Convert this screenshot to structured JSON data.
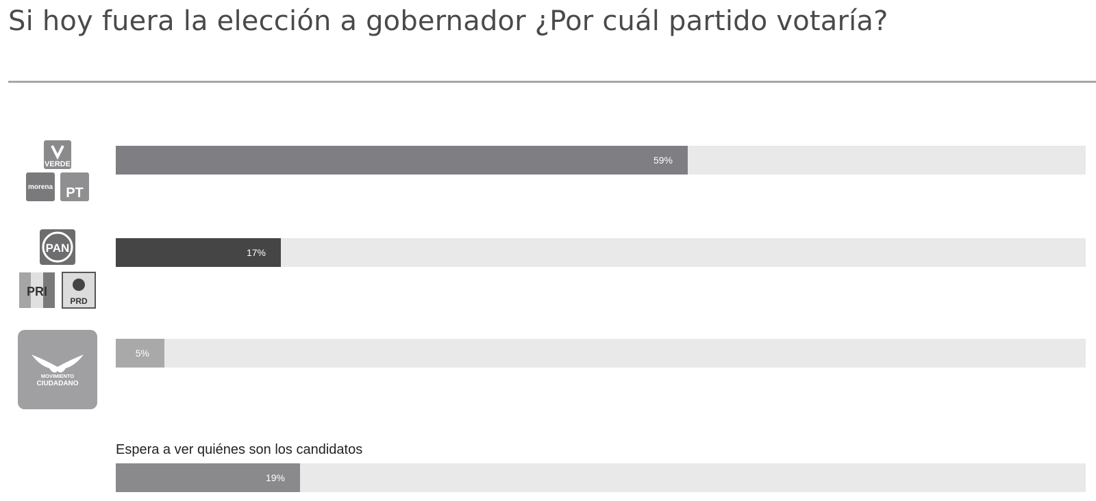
{
  "title": "Si hoy fuera la elección a gobernador ¿Por cuál partido votaría?",
  "logos": {
    "verde": "VERDE",
    "morena": "morena",
    "pt": "PT",
    "pan": "PAN",
    "pri": "PRI",
    "prd": "PRD",
    "mc_line1": "MOVIMIENTO",
    "mc_line2": "CIUDADANO"
  },
  "chart_data": {
    "type": "bar",
    "orientation": "horizontal",
    "xlim": [
      0,
      100
    ],
    "categories": [
      "PVEM / Morena / PT",
      "PAN / PRI / PRD",
      "Movimiento Ciudadano",
      "Espera a ver quiénes son los candidatos"
    ],
    "values": [
      59,
      17,
      5,
      19
    ],
    "value_labels": [
      "59%",
      "17%",
      "5%",
      "19%"
    ],
    "printed_category_label": "Espera a ver quiénes son los candidatos",
    "colors": [
      "#7f7f83",
      "#454545",
      "#a9a9a9",
      "#8a8a8c"
    ]
  }
}
